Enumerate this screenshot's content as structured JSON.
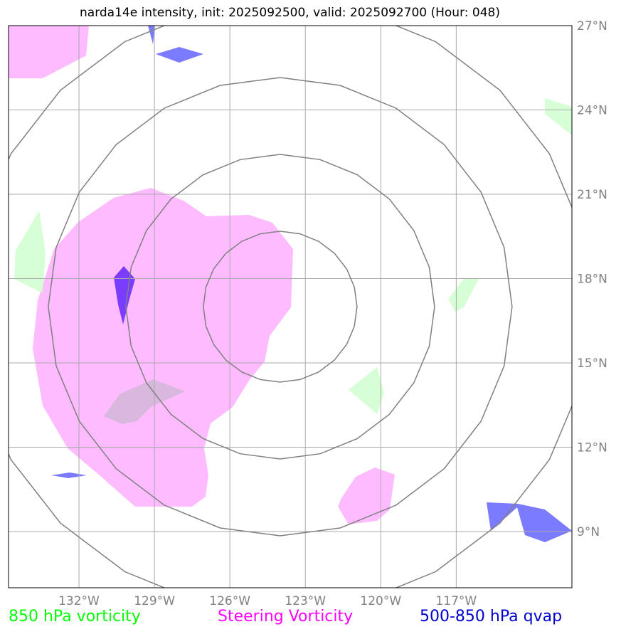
{
  "title": "narda14e intensity, init: 2025092500, valid: 2025092700 (Hour: 048)",
  "map": {
    "lon_range": [
      -134.8,
      -112.4
    ],
    "lat_range": [
      7.0,
      27.0
    ],
    "lon_ticks": [
      {
        "value": -132,
        "label": "132°W"
      },
      {
        "value": -129,
        "label": "129°W"
      },
      {
        "value": -126,
        "label": "126°W"
      },
      {
        "value": -123,
        "label": "123°W"
      },
      {
        "value": -120,
        "label": "120°W"
      },
      {
        "value": -117,
        "label": "117°W"
      }
    ],
    "lat_ticks": [
      {
        "value": 9,
        "label": "9°N"
      },
      {
        "value": 12,
        "label": "12°N"
      },
      {
        "value": 15,
        "label": "15°N"
      },
      {
        "value": 18,
        "label": "18°N"
      },
      {
        "value": 21,
        "label": "21°N"
      },
      {
        "value": 24,
        "label": "24°N"
      },
      {
        "value": 27,
        "label": "27°N"
      }
    ],
    "range_rings_center": {
      "lon": -124.0,
      "lat": 17.0
    },
    "colors": {
      "vorticity_850": "#ccffcc",
      "steering_vorticity": "#ffbbff",
      "qvap": "#7b7bff",
      "overlap": "#7a3cff",
      "ring": "#808080",
      "grid": "#aaaaaa"
    }
  },
  "legend": {
    "green": "850 hPa vorticity",
    "magenta": "Steering Vorticity",
    "blue": "500-850 hPa qvap"
  }
}
